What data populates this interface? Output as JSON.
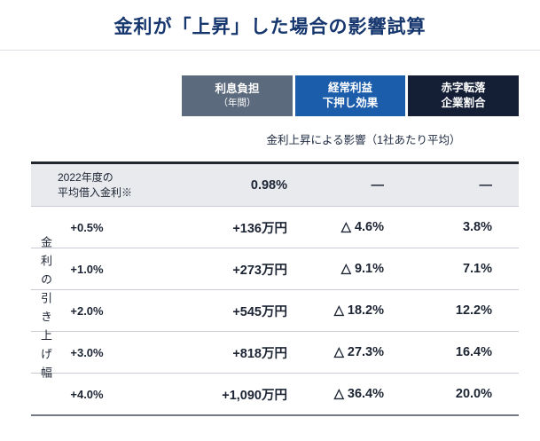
{
  "title": "金利が「上昇」した場合の影響試算",
  "subtitle": "金利上昇による影響（1社あたり平均）",
  "side_label": "金利の引き上げ幅",
  "columns": {
    "interest": {
      "line1": "利息負担",
      "line2": "（年間）"
    },
    "profit": {
      "line1": "経常利益",
      "line2": "下押し効果"
    },
    "deficit": {
      "line1": "赤字転落",
      "line2": "企業割合"
    }
  },
  "baseline": {
    "label_line1": "2022年度の",
    "label_line2": "平均借入金利※",
    "interest": "0.98%",
    "profit": "―",
    "deficit": "―"
  },
  "rows": [
    {
      "label": "+0.5%",
      "interest": "+136万円",
      "profit": "△ 4.6%",
      "deficit": "3.8%"
    },
    {
      "label": "+1.0%",
      "interest": "+273万円",
      "profit": "△ 9.1%",
      "deficit": "7.1%"
    },
    {
      "label": "+2.0%",
      "interest": "+545万円",
      "profit": "△ 18.2%",
      "deficit": "12.2%"
    },
    {
      "label": "+3.0%",
      "interest": "+818万円",
      "profit": "△ 27.3%",
      "deficit": "16.4%"
    },
    {
      "label": "+4.0%",
      "interest": "+1,090万円",
      "profit": "△ 36.4%",
      "deficit": "20.0%"
    }
  ],
  "colors": {
    "title_text": "#16366e",
    "header_interest_bg": "#5c6a7d",
    "header_profit_bg": "#1b5cab",
    "header_deficit_bg": "#141f36",
    "baseline_row_bg": "#e8eaed",
    "table_text": "#1c2433"
  },
  "chart_data": {
    "type": "table",
    "title": "金利が「上昇」した場合の影響試算",
    "subtitle": "金利上昇による影響（1社あたり平均）",
    "columns": [
      "金利の引き上げ幅",
      "利息負担（年間）",
      "経常利益下押し効果",
      "赤字転落企業割合"
    ],
    "rows": [
      [
        "2022年度の平均借入金利※",
        "0.98%",
        "―",
        "―"
      ],
      [
        "+0.5%",
        "+136万円",
        "△ 4.6%",
        "3.8%"
      ],
      [
        "+1.0%",
        "+273万円",
        "△ 9.1%",
        "7.1%"
      ],
      [
        "+2.0%",
        "+545万円",
        "△ 18.2%",
        "12.2%"
      ],
      [
        "+3.0%",
        "+818万円",
        "△ 27.3%",
        "16.4%"
      ],
      [
        "+4.0%",
        "+1,090万円",
        "△ 36.4%",
        "20.0%"
      ]
    ]
  }
}
